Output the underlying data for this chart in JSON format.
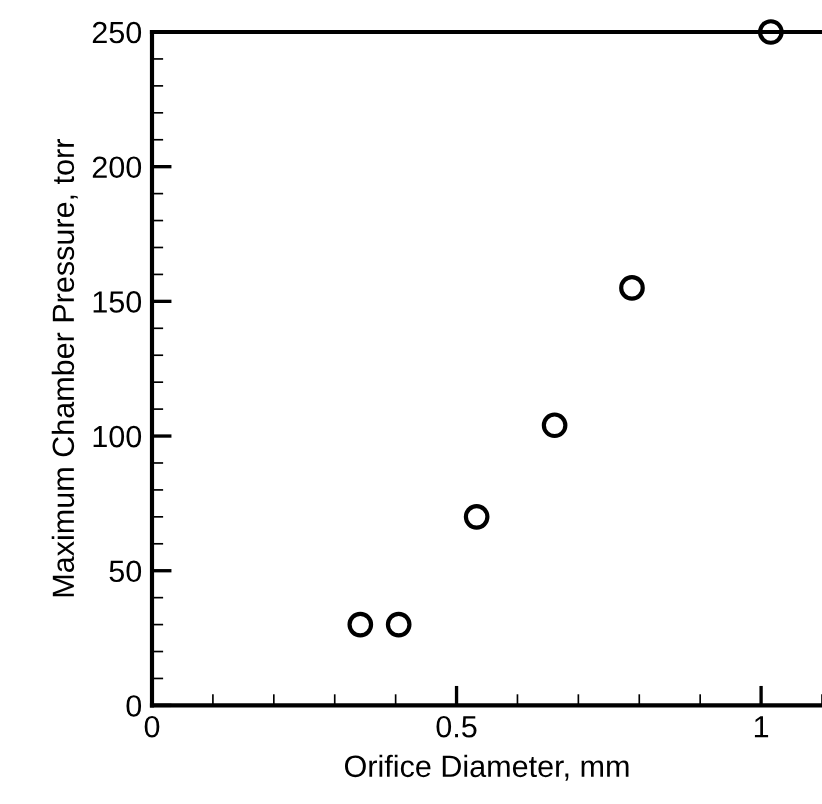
{
  "chart_data": {
    "type": "scatter",
    "xlabel": "Orifice Diameter, mm",
    "ylabel": "Maximum Chamber Pressure, torr",
    "x": [
      0.342,
      0.405,
      0.533,
      0.661,
      0.788,
      1.016
    ],
    "series": [
      {
        "color": "#000000",
        "values": [
          30,
          30,
          70,
          104,
          155,
          250
        ]
      }
    ],
    "marker": "circle",
    "xlim": [
      0,
      1.1
    ],
    "xticks": [
      0,
      0.5,
      1
    ],
    "ylim": [
      0,
      250
    ],
    "yticks": [
      0,
      50,
      100,
      150,
      200,
      250
    ],
    "grid": false,
    "legend": false
  }
}
